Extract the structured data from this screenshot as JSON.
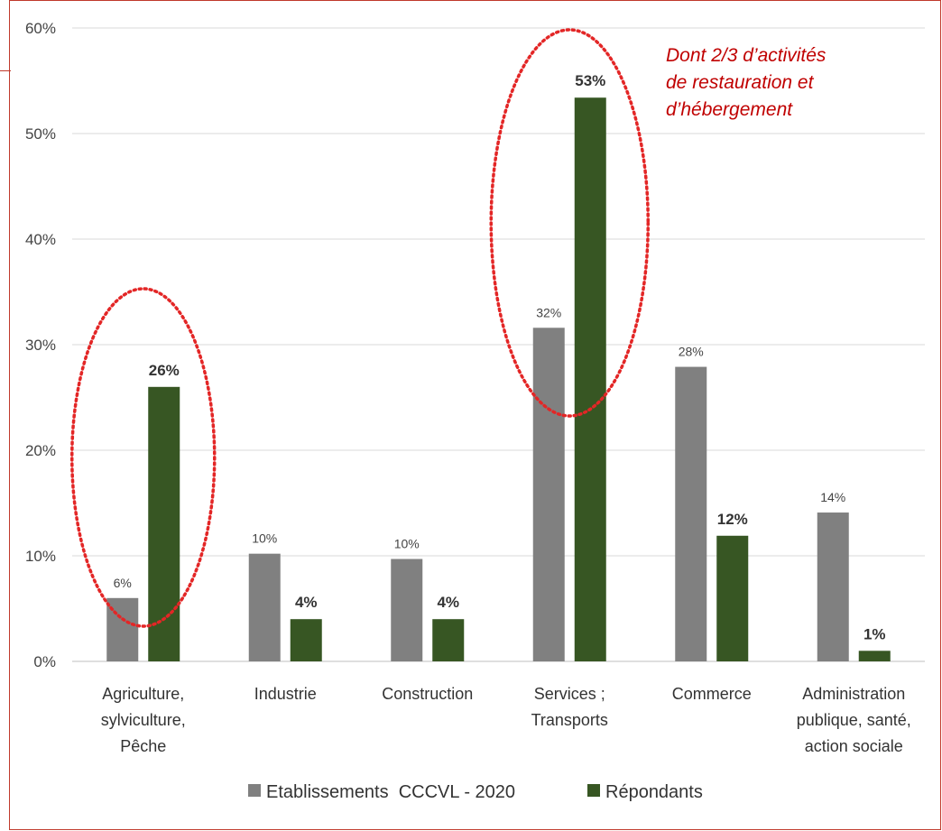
{
  "chart_data": {
    "type": "bar",
    "categories": [
      [
        "Agriculture,",
        "sylviculture,",
        "Pêche"
      ],
      [
        "Industrie"
      ],
      [
        "Construction"
      ],
      [
        "Services ;",
        "Transports"
      ],
      [
        "Commerce"
      ],
      [
        "Administration",
        "publique, santé,",
        "action sociale"
      ]
    ],
    "series": [
      {
        "name": "Etablissements  CCCVL - 2020",
        "values": [
          6,
          10.2,
          9.7,
          31.6,
          27.9,
          14.1
        ],
        "labels": [
          "6%",
          "10%",
          "10%",
          "32%",
          "28%",
          "14%"
        ],
        "color": "#808080"
      },
      {
        "name": "Répondants",
        "values": [
          26,
          4,
          4,
          53.4,
          11.9,
          1
        ],
        "labels": [
          "26%",
          "4%",
          "4%",
          "53%",
          "12%",
          "1%"
        ],
        "color": "#375623"
      }
    ],
    "ylim": [
      0,
      60
    ],
    "yticks": [
      0,
      10,
      20,
      30,
      40,
      50,
      60
    ],
    "ytick_labels": [
      "0%",
      "10%",
      "20%",
      "30%",
      "40%",
      "50%",
      "60%"
    ],
    "grid": true,
    "legend": "bottom",
    "annotation": {
      "lines": [
        "Dont 2/3 d’activités",
        "de restauration et",
        "d’hébergement"
      ],
      "color": "#c00000"
    },
    "highlight_ellipses": [
      "Agriculture, sylviculture, Pêche",
      "Services ; Transports"
    ],
    "highlight_color": "#e32626"
  }
}
